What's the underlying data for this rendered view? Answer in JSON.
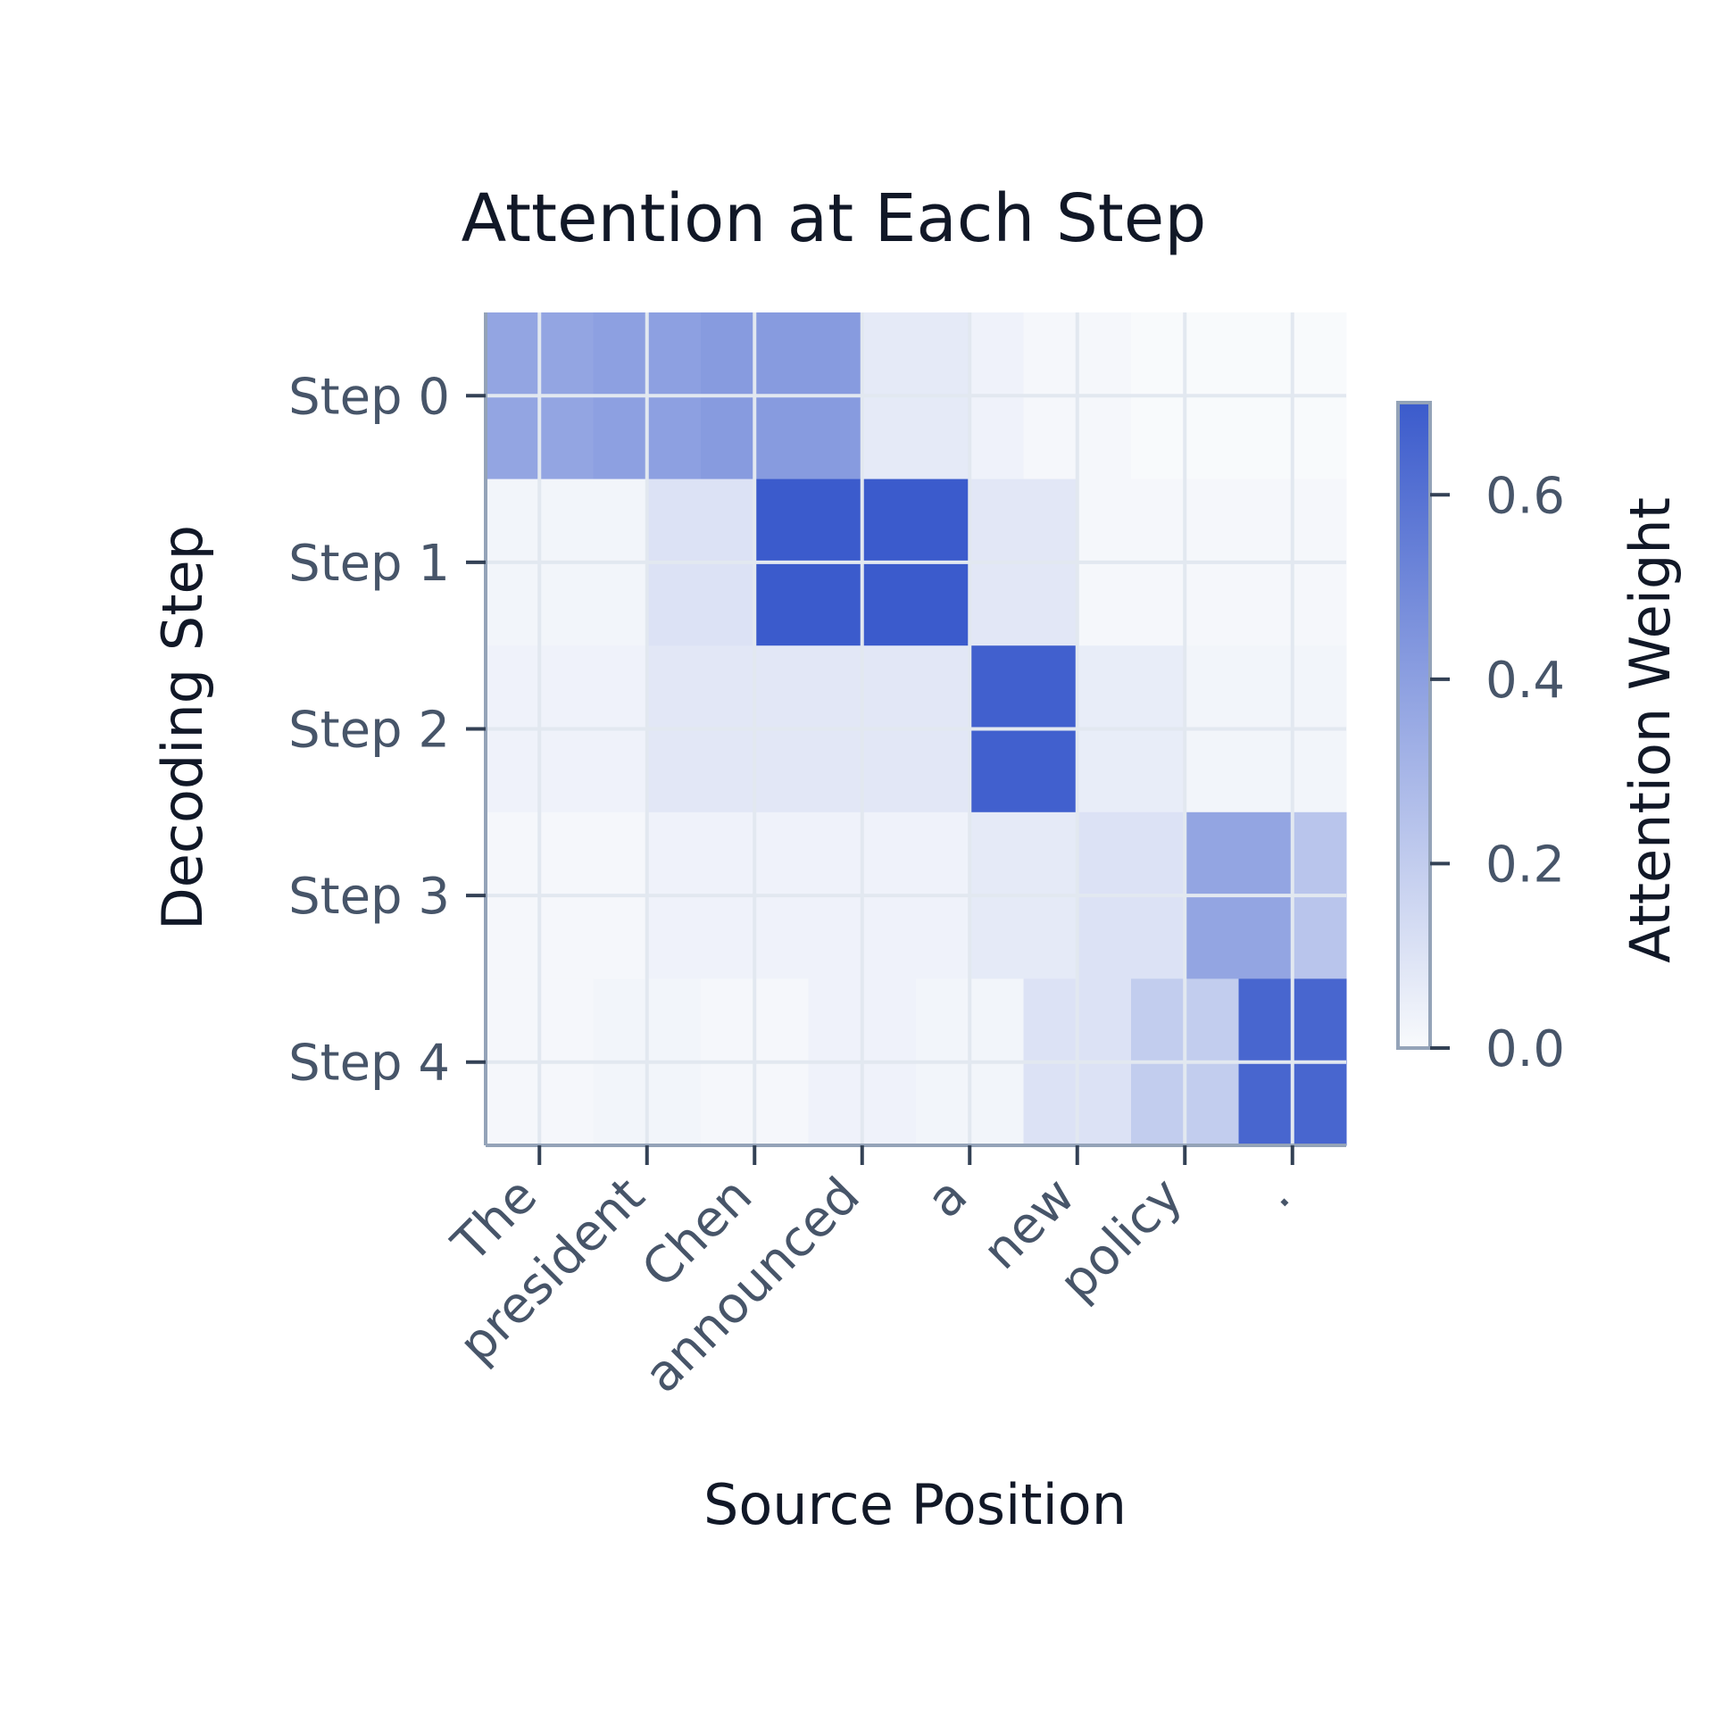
{
  "chart_data": {
    "type": "heatmap",
    "title": "Attention at Each Step",
    "xlabel": "Source Position",
    "ylabel": "Decoding Step",
    "x_tick_labels": [
      "The",
      "president",
      "Chen",
      "announced",
      "a",
      "new",
      "policy",
      "."
    ],
    "y_tick_labels": [
      "Step 0",
      "Step 1",
      "Step 2",
      "Step 3",
      "Step 4"
    ],
    "x_range": [
      -0.5,
      7.5
    ],
    "y_rows": 5,
    "row_cells": [
      [
        {
          "x0": -0.5,
          "x1": 0.5,
          "v": 0.32
        },
        {
          "x0": 0.5,
          "x1": 1.5,
          "v": 0.34
        },
        {
          "x0": 1.5,
          "x2": 2.5,
          "x1": 2.0,
          "v": 0.36
        },
        {
          "x0": 2.0,
          "x1": 3.0,
          "v": 0.36
        },
        {
          "x0": 3.0,
          "x1": 4.0,
          "v": 0.06
        },
        {
          "x0": 4.0,
          "x1": 4.5,
          "v": 0.03
        },
        {
          "x0": 4.5,
          "x1": 5.5,
          "v": 0.01
        },
        {
          "x0": 5.5,
          "x1": 7.5,
          "v": 0.0
        }
      ],
      [
        {
          "x0": -0.5,
          "x1": 1.0,
          "v": 0.02
        },
        {
          "x0": 1.0,
          "x1": 2.0,
          "v": 0.09
        },
        {
          "x0": 2.0,
          "x1": 4.0,
          "v": 0.64
        },
        {
          "x0": 4.0,
          "x1": 5.0,
          "v": 0.07
        },
        {
          "x0": 5.0,
          "x1": 7.5,
          "v": 0.01
        }
      ],
      [
        {
          "x0": -0.5,
          "x1": 1.0,
          "v": 0.03
        },
        {
          "x0": 1.0,
          "x1": 4.0,
          "v": 0.07
        },
        {
          "x0": 4.0,
          "x1": 5.0,
          "v": 0.58
        },
        {
          "x0": 5.0,
          "x1": 6.0,
          "v": 0.05
        },
        {
          "x0": 6.0,
          "x1": 7.5,
          "v": 0.02
        }
      ],
      [
        {
          "x0": -0.5,
          "x1": 1.0,
          "v": 0.01
        },
        {
          "x0": 1.0,
          "x1": 4.0,
          "v": 0.03
        },
        {
          "x0": 4.0,
          "x1": 5.0,
          "v": 0.06
        },
        {
          "x0": 5.0,
          "x1": 6.0,
          "v": 0.09
        },
        {
          "x0": 6.0,
          "x1": 7.0,
          "v": 0.32
        },
        {
          "x0": 7.0,
          "x1": 8.0,
          "v": 0.2
        },
        {
          "x0": 8.0,
          "x1": 7.5,
          "v": 0.02
        }
      ],
      [
        {
          "x0": -0.5,
          "x1": 0.5,
          "v": 0.01
        },
        {
          "x0": 0.5,
          "x1": 1.5,
          "v": 0.02
        },
        {
          "x0": 1.5,
          "x1": 2.5,
          "v": 0.01
        },
        {
          "x0": 2.5,
          "x1": 3.5,
          "v": 0.03
        },
        {
          "x0": 3.5,
          "x1": 4.5,
          "v": 0.02
        },
        {
          "x0": 4.5,
          "x1": 5.5,
          "v": 0.09
        },
        {
          "x0": 5.5,
          "x1": 6.5,
          "v": 0.17
        },
        {
          "x0": 6.5,
          "x1": 7.5,
          "v": 0.56
        }
      ]
    ],
    "colorbar": {
      "label": "Attention Weight",
      "ticks": [
        0.0,
        0.2,
        0.4,
        0.6
      ],
      "tick_labels": [
        "0.0",
        "0.2",
        "0.4",
        "0.6"
      ],
      "range": [
        0.0,
        0.6
      ],
      "color_low": "#f8fafc",
      "color_high": "#3b5bcc"
    },
    "grid": true
  }
}
